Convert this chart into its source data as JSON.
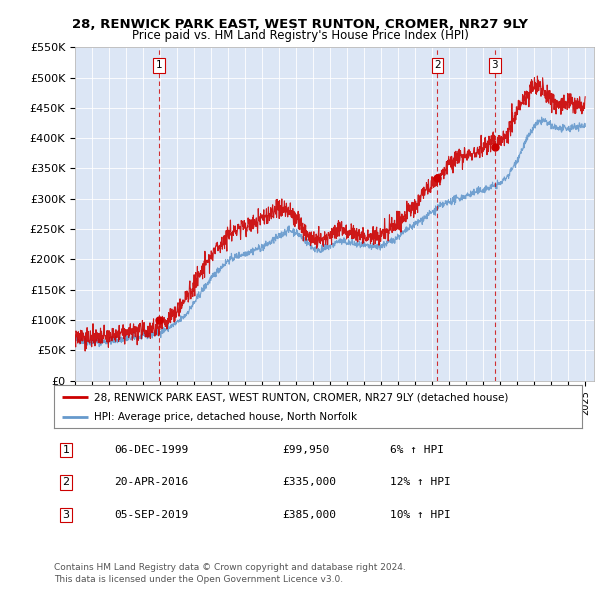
{
  "title": "28, RENWICK PARK EAST, WEST RUNTON, CROMER, NR27 9LY",
  "subtitle": "Price paid vs. HM Land Registry's House Price Index (HPI)",
  "ylim": [
    0,
    550000
  ],
  "yticks": [
    0,
    50000,
    100000,
    150000,
    200000,
    250000,
    300000,
    350000,
    400000,
    450000,
    500000,
    550000
  ],
  "ytick_labels": [
    "£0",
    "£50K",
    "£100K",
    "£150K",
    "£200K",
    "£250K",
    "£300K",
    "£350K",
    "£400K",
    "£450K",
    "£500K",
    "£550K"
  ],
  "xlim_start": 1995.0,
  "xlim_end": 2025.5,
  "background_color": "#ffffff",
  "plot_bg_color": "#dce6f5",
  "grid_color": "#ffffff",
  "red_color": "#cc0000",
  "blue_color": "#6699cc",
  "sale_color": "#cc0000",
  "hpi_anchors": [
    [
      1995.0,
      67000
    ],
    [
      1995.5,
      65000
    ],
    [
      1996.0,
      63000
    ],
    [
      1996.5,
      64000
    ],
    [
      1997.0,
      65000
    ],
    [
      1997.5,
      67000
    ],
    [
      1998.0,
      69000
    ],
    [
      1998.5,
      71000
    ],
    [
      1999.0,
      73000
    ],
    [
      1999.5,
      76000
    ],
    [
      2000.0,
      80000
    ],
    [
      2000.5,
      87000
    ],
    [
      2001.0,
      95000
    ],
    [
      2001.5,
      108000
    ],
    [
      2002.0,
      128000
    ],
    [
      2002.5,
      150000
    ],
    [
      2003.0,
      168000
    ],
    [
      2003.5,
      185000
    ],
    [
      2004.0,
      198000
    ],
    [
      2004.5,
      205000
    ],
    [
      2005.0,
      210000
    ],
    [
      2005.5,
      215000
    ],
    [
      2006.0,
      220000
    ],
    [
      2006.5,
      228000
    ],
    [
      2007.0,
      238000
    ],
    [
      2007.5,
      248000
    ],
    [
      2008.0,
      245000
    ],
    [
      2008.5,
      232000
    ],
    [
      2009.0,
      218000
    ],
    [
      2009.5,
      215000
    ],
    [
      2010.0,
      222000
    ],
    [
      2010.5,
      230000
    ],
    [
      2011.0,
      228000
    ],
    [
      2011.5,
      225000
    ],
    [
      2012.0,
      222000
    ],
    [
      2012.5,
      220000
    ],
    [
      2013.0,
      222000
    ],
    [
      2013.5,
      228000
    ],
    [
      2014.0,
      238000
    ],
    [
      2014.5,
      248000
    ],
    [
      2015.0,
      258000
    ],
    [
      2015.5,
      268000
    ],
    [
      2016.0,
      278000
    ],
    [
      2016.5,
      288000
    ],
    [
      2017.0,
      295000
    ],
    [
      2017.5,
      300000
    ],
    [
      2018.0,
      305000
    ],
    [
      2018.5,
      310000
    ],
    [
      2019.0,
      315000
    ],
    [
      2019.5,
      320000
    ],
    [
      2020.0,
      325000
    ],
    [
      2020.5,
      340000
    ],
    [
      2021.0,
      365000
    ],
    [
      2021.5,
      395000
    ],
    [
      2022.0,
      420000
    ],
    [
      2022.5,
      430000
    ],
    [
      2023.0,
      420000
    ],
    [
      2023.5,
      415000
    ],
    [
      2024.0,
      415000
    ],
    [
      2024.5,
      420000
    ]
  ],
  "red_anchors": [
    [
      1995.0,
      75000
    ],
    [
      1995.5,
      73000
    ],
    [
      1996.0,
      68000
    ],
    [
      1996.5,
      70000
    ],
    [
      1997.0,
      72000
    ],
    [
      1997.5,
      75000
    ],
    [
      1998.0,
      78000
    ],
    [
      1998.5,
      80000
    ],
    [
      1999.0,
      82000
    ],
    [
      1999.5,
      85000
    ],
    [
      2000.0,
      92000
    ],
    [
      2000.5,
      102000
    ],
    [
      2001.0,
      115000
    ],
    [
      2001.5,
      135000
    ],
    [
      2002.0,
      158000
    ],
    [
      2002.5,
      182000
    ],
    [
      2003.0,
      205000
    ],
    [
      2003.5,
      225000
    ],
    [
      2004.0,
      240000
    ],
    [
      2004.5,
      250000
    ],
    [
      2005.0,
      255000
    ],
    [
      2005.5,
      260000
    ],
    [
      2006.0,
      268000
    ],
    [
      2006.5,
      275000
    ],
    [
      2007.0,
      285000
    ],
    [
      2007.5,
      280000
    ],
    [
      2008.0,
      268000
    ],
    [
      2008.5,
      248000
    ],
    [
      2009.0,
      232000
    ],
    [
      2009.5,
      228000
    ],
    [
      2010.0,
      240000
    ],
    [
      2010.5,
      252000
    ],
    [
      2011.0,
      248000
    ],
    [
      2011.5,
      242000
    ],
    [
      2012.0,
      238000
    ],
    [
      2012.5,
      235000
    ],
    [
      2013.0,
      240000
    ],
    [
      2013.5,
      250000
    ],
    [
      2014.0,
      262000
    ],
    [
      2014.5,
      275000
    ],
    [
      2015.0,
      290000
    ],
    [
      2015.5,
      308000
    ],
    [
      2016.0,
      325000
    ],
    [
      2016.5,
      340000
    ],
    [
      2017.0,
      355000
    ],
    [
      2017.5,
      365000
    ],
    [
      2018.0,
      372000
    ],
    [
      2018.5,
      378000
    ],
    [
      2019.0,
      385000
    ],
    [
      2019.5,
      392000
    ],
    [
      2020.0,
      395000
    ],
    [
      2020.5,
      415000
    ],
    [
      2021.0,
      445000
    ],
    [
      2021.5,
      468000
    ],
    [
      2022.0,
      490000
    ],
    [
      2022.5,
      480000
    ],
    [
      2023.0,
      465000
    ],
    [
      2023.5,
      455000
    ],
    [
      2024.0,
      460000
    ],
    [
      2024.5,
      455000
    ]
  ],
  "sales": [
    {
      "year": 1999.92,
      "price": 99950,
      "label": "1"
    },
    {
      "year": 2016.3,
      "price": 335000,
      "label": "2"
    },
    {
      "year": 2019.67,
      "price": 385000,
      "label": "3"
    }
  ],
  "sale_table": [
    {
      "num": "1",
      "date": "06-DEC-1999",
      "price": "£99,950",
      "hpi": "6% ↑ HPI"
    },
    {
      "num": "2",
      "date": "20-APR-2016",
      "price": "£335,000",
      "hpi": "12% ↑ HPI"
    },
    {
      "num": "3",
      "date": "05-SEP-2019",
      "price": "£385,000",
      "hpi": "10% ↑ HPI"
    }
  ],
  "legend_line1": "28, RENWICK PARK EAST, WEST RUNTON, CROMER, NR27 9LY (detached house)",
  "legend_line2": "HPI: Average price, detached house, North Norfolk",
  "footer1": "Contains HM Land Registry data © Crown copyright and database right 2024.",
  "footer2": "This data is licensed under the Open Government Licence v3.0."
}
